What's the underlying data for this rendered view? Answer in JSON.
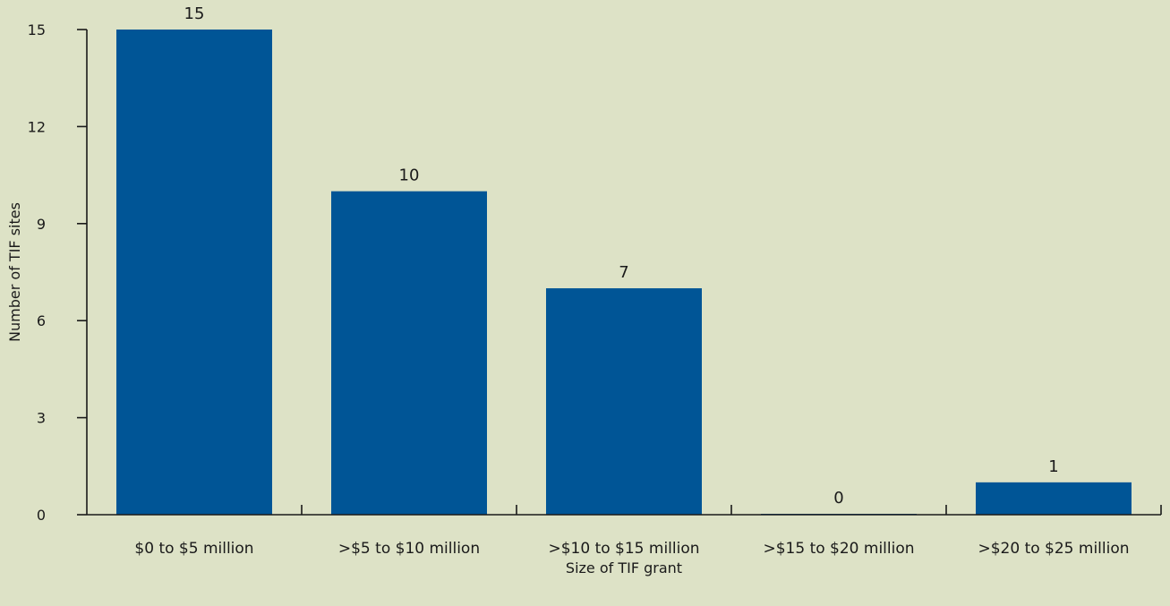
{
  "chart_data": {
    "type": "bar",
    "title": "",
    "xlabel": "Size of TIF grant",
    "ylabel": "Number of TIF sites",
    "categories": [
      "$0 to $5 million",
      ">$5 to $10 million",
      ">$10 to $15 million",
      ">$15 to $20 million",
      ">$20 to $25 million"
    ],
    "values": [
      15,
      10,
      7,
      0,
      1
    ],
    "data_labels": [
      "15",
      "10",
      "7",
      "0",
      "1"
    ],
    "yticks": [
      0,
      3,
      6,
      9,
      12,
      15
    ],
    "ytick_labels": [
      "0",
      "3",
      "6",
      "9",
      "12",
      "15"
    ],
    "ylim": [
      0,
      15
    ],
    "grid": false,
    "legend": "none",
    "colors": {
      "bar": "#005596",
      "background": "#dde2c6",
      "axis": "#1a1a1a"
    }
  }
}
